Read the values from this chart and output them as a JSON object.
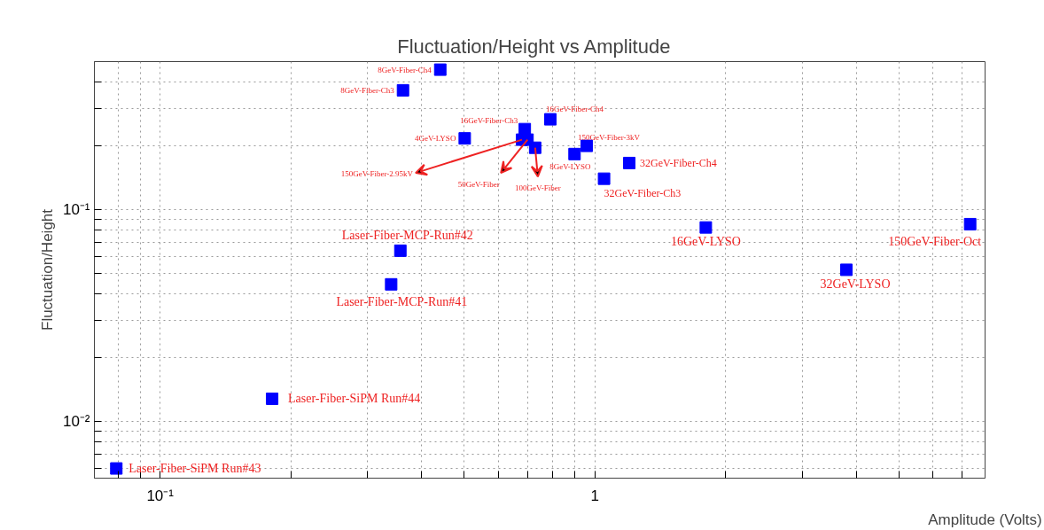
{
  "chart_data": {
    "type": "scatter",
    "title": "Fluctuation/Height  vs  Amplitude",
    "xlabel": "Amplitude (Volts)",
    "ylabel": "Fluctuation/Height",
    "log": "xy",
    "grid": true,
    "marker": "square",
    "xlim": [
      0.0706,
      7.9
    ],
    "ylim": [
      0.0054,
      0.5
    ],
    "xticks": [
      {
        "value": 0.08,
        "label": null
      },
      {
        "value": 0.09,
        "label": null
      },
      {
        "value": 0.1,
        "label": "10⁻¹"
      },
      {
        "value": 0.2,
        "label": null
      },
      {
        "value": 0.3,
        "label": null
      },
      {
        "value": 0.4,
        "label": null
      },
      {
        "value": 0.5,
        "label": null
      },
      {
        "value": 0.6,
        "label": null
      },
      {
        "value": 0.7,
        "label": null
      },
      {
        "value": 0.8,
        "label": null
      },
      {
        "value": 0.9,
        "label": null
      },
      1,
      {
        "value": 2,
        "label": null
      },
      {
        "value": 3,
        "label": null
      },
      {
        "value": 4,
        "label": null
      },
      {
        "value": 5,
        "label": null
      },
      {
        "value": 6,
        "label": null
      },
      {
        "value": 7,
        "label": null
      }
    ],
    "yticks": [
      {
        "value": 0.006,
        "label": null
      },
      {
        "value": 0.007,
        "label": null
      },
      {
        "value": 0.008,
        "label": null
      },
      {
        "value": 0.009,
        "label": null
      },
      {
        "value": 0.01,
        "label": "10⁻²"
      },
      {
        "value": 0.02,
        "label": null
      },
      {
        "value": 0.03,
        "label": null
      },
      {
        "value": 0.04,
        "label": null
      },
      {
        "value": 0.05,
        "label": null
      },
      {
        "value": 0.06,
        "label": null
      },
      {
        "value": 0.07,
        "label": null
      },
      {
        "value": 0.08,
        "label": null
      },
      {
        "value": 0.09,
        "label": null
      },
      {
        "value": 0.1,
        "label": "10⁻¹"
      },
      {
        "value": 0.2,
        "label": null
      },
      {
        "value": 0.3,
        "label": null
      },
      {
        "value": 0.4,
        "label": null
      }
    ],
    "series": [
      {
        "color": "#0000ff",
        "x": [
          0.441,
          0.362,
          0.79,
          0.69,
          0.68,
          0.7,
          0.729,
          0.502,
          0.898,
          0.958,
          1.05,
          1.2,
          1.8,
          3.79,
          7.3,
          0.357,
          0.34,
          0.181,
          0.0793
        ],
        "values": [
          0.458,
          0.366,
          0.267,
          0.24,
          0.214,
          0.214,
          0.196,
          0.217,
          0.183,
          0.2,
          0.14,
          0.166,
          0.0824,
          0.052,
          0.0854,
          0.064,
          0.0444,
          0.0128,
          0.006
        ]
      }
    ],
    "annotations": [
      {
        "text": "8GeV-Fiber-Ch4",
        "x": 0.441,
        "y": 0.458
      },
      {
        "text": "8GeV-Fiber-Ch3",
        "x": 0.362,
        "y": 0.366
      },
      {
        "text": "16GeV-Fiber-Ch4",
        "x": 0.79,
        "y": 0.267
      },
      {
        "text": "16GeV-Fiber-Ch3",
        "x": 0.69,
        "y": 0.24
      },
      {
        "text": "150GeV-Fiber-2.95kV",
        "x": 0.68,
        "y": 0.214
      },
      {
        "text": "50GeV-Fiber",
        "x": 0.7,
        "y": 0.214
      },
      {
        "text": "100GeV-Fiber",
        "x": 0.729,
        "y": 0.196
      },
      {
        "text": "4GeV-LYSO",
        "x": 0.502,
        "y": 0.217
      },
      {
        "text": "8GeV-LYSO",
        "x": 0.898,
        "y": 0.183
      },
      {
        "text": "150GeV-Fiber-3kV",
        "x": 0.958,
        "y": 0.2
      },
      {
        "text": "32GeV-Fiber-Ch3",
        "x": 1.05,
        "y": 0.14
      },
      {
        "text": "32GeV-Fiber-Ch4",
        "x": 1.2,
        "y": 0.166
      },
      {
        "text": "16GeV-LYSO",
        "x": 1.8,
        "y": 0.0824
      },
      {
        "text": "32GeV-LYSO",
        "x": 3.79,
        "y": 0.052
      },
      {
        "text": "150GeV-Fiber-Oct",
        "x": 7.3,
        "y": 0.0854
      },
      {
        "text": "Laser-Fiber-MCP-Run#42",
        "x": 0.357,
        "y": 0.064
      },
      {
        "text": "Laser-Fiber-MCP-Run#41",
        "x": 0.34,
        "y": 0.0444
      },
      {
        "text": "Laser-Fiber-SiPM Run#44",
        "x": 0.181,
        "y": 0.0128
      },
      {
        "text": "Laser-Fiber-SiPM Run#43",
        "x": 0.0793,
        "y": 0.006
      }
    ]
  }
}
